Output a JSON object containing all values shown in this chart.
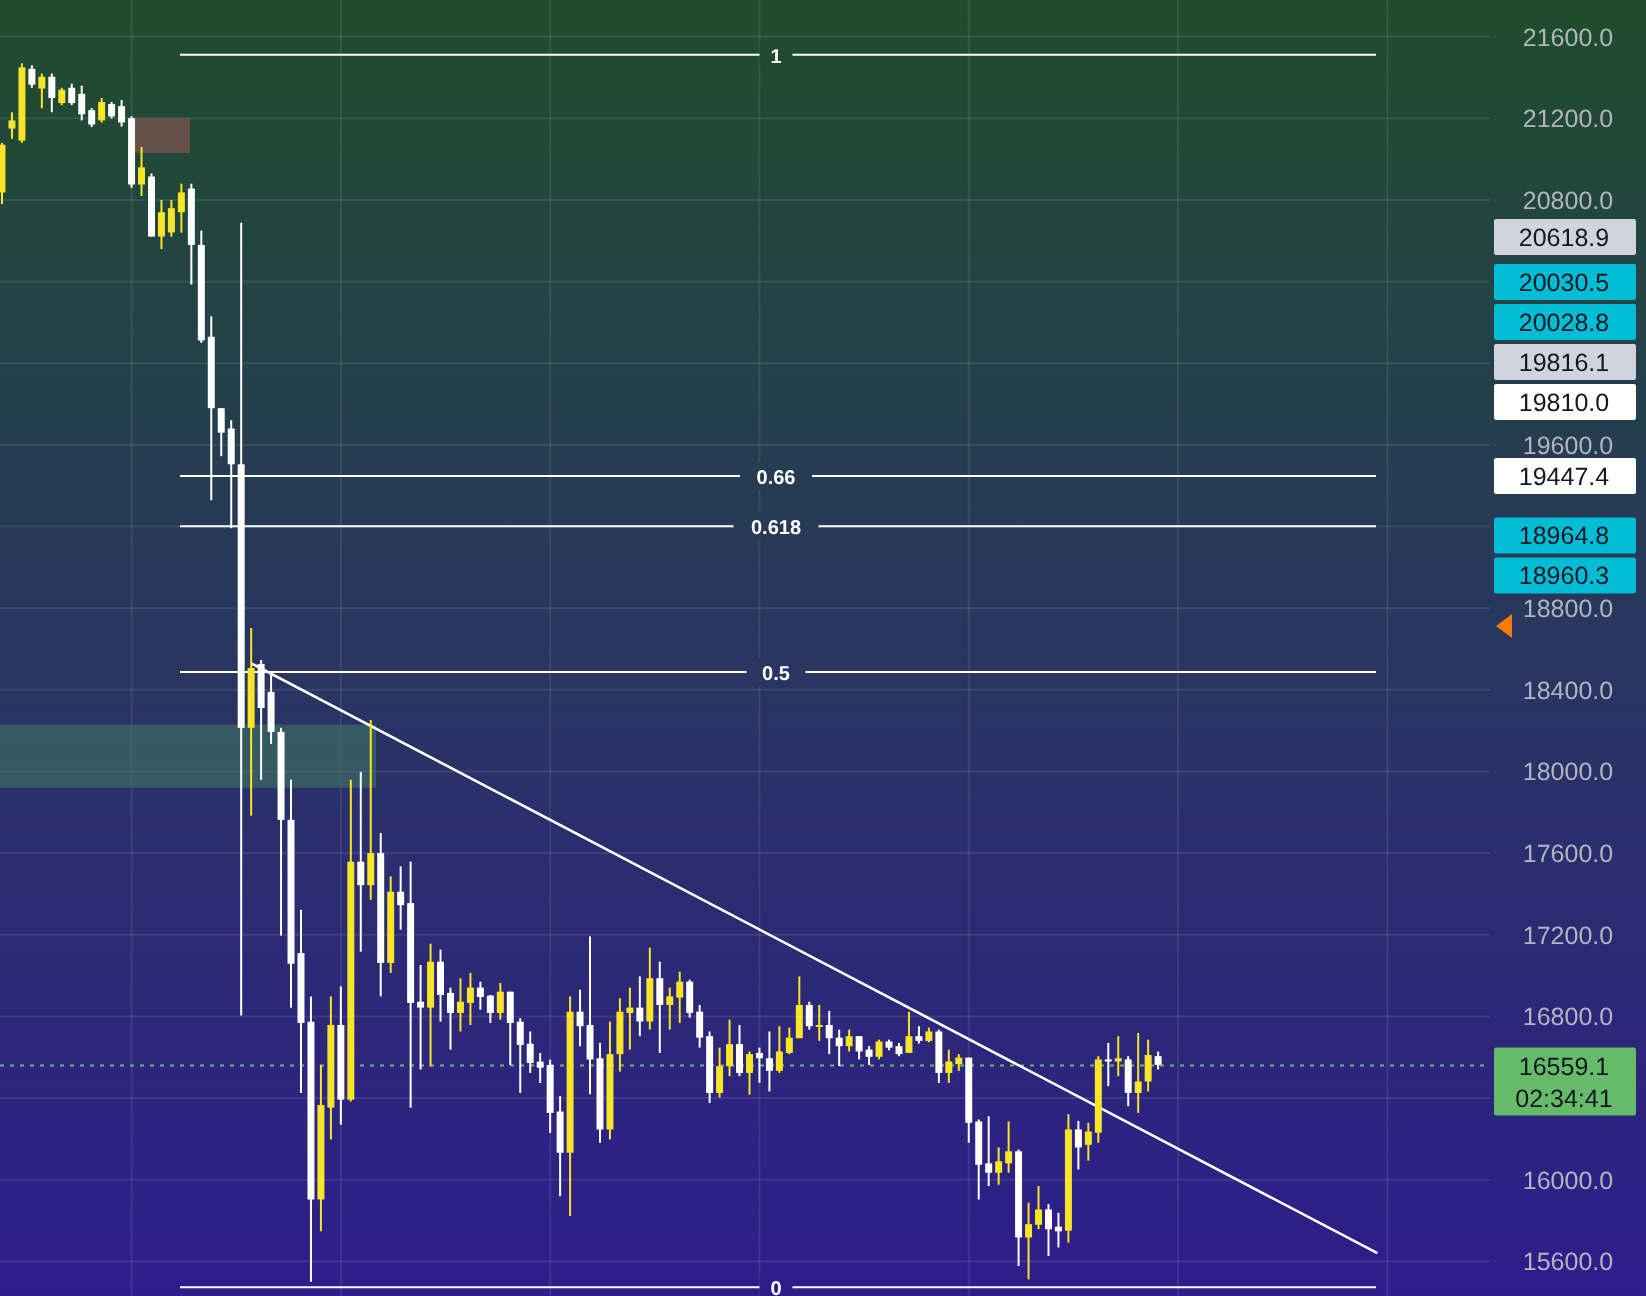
{
  "chart_data": {
    "type": "candlestick",
    "categories": [
      null,
      null,
      null,
      null,
      null,
      null,
      null,
      null,
      null,
      null,
      null,
      null,
      null,
      null,
      null,
      null,
      null,
      null,
      null,
      null,
      null,
      null,
      null,
      null,
      null,
      null,
      null,
      null,
      null,
      null,
      null,
      null,
      null,
      null,
      null,
      null,
      null,
      null,
      null,
      null,
      null,
      null,
      null,
      null,
      null,
      null,
      null,
      null,
      null,
      null,
      null,
      null,
      null,
      null,
      null,
      null,
      null,
      null,
      null,
      null,
      null,
      null,
      null,
      null,
      null,
      null,
      null,
      null,
      null,
      null,
      null,
      null,
      null,
      null,
      null,
      null,
      null,
      null,
      null,
      null,
      null,
      null,
      null,
      null,
      null,
      null,
      null,
      null,
      null,
      null,
      null,
      null,
      null,
      null,
      null,
      null,
      null,
      null,
      null,
      null,
      null,
      null,
      null,
      null,
      null,
      null,
      null,
      null,
      null,
      null,
      null,
      null,
      null,
      null,
      null,
      null,
      null,
      null,
      null,
      null,
      null,
      null,
      null,
      null,
      null,
      null,
      null,
      null,
      null,
      null,
      null,
      null,
      null,
      null,
      null,
      null,
      null,
      null,
      null,
      null,
      null,
      null,
      null,
      null,
      null,
      null,
      null,
      null,
      null,
      null
    ],
    "ohlc": [
      [
        20837,
        21080,
        20780,
        21071
      ],
      [
        21150,
        21230,
        21100,
        21190
      ],
      [
        21091,
        21470,
        21080,
        21450
      ],
      [
        21443,
        21460,
        21350,
        21365
      ],
      [
        21346,
        21420,
        21250,
        21404
      ],
      [
        21404,
        21420,
        21230,
        21300
      ],
      [
        21275,
        21350,
        21265,
        21340
      ],
      [
        21350,
        21370,
        21265,
        21275
      ],
      [
        21320,
        21360,
        21190,
        21220
      ],
      [
        21240,
        21250,
        21158,
        21170
      ],
      [
        21190,
        21300,
        21180,
        21280
      ],
      [
        21270,
        21280,
        21200,
        21210
      ],
      [
        21260,
        21290,
        21160,
        21180
      ],
      [
        21201,
        21210,
        20860,
        20876
      ],
      [
        20876,
        21060,
        20820,
        20960
      ],
      [
        20915,
        20930,
        20620,
        20621
      ],
      [
        20621,
        20800,
        20560,
        20740
      ],
      [
        20641,
        20800,
        20620,
        20760
      ],
      [
        20740,
        20880,
        20640,
        20837
      ],
      [
        20856,
        20880,
        20386,
        20580
      ],
      [
        20580,
        20650,
        20100,
        20112
      ],
      [
        20130,
        20230,
        19329,
        19780
      ],
      [
        19780,
        19780,
        19545,
        19660
      ],
      [
        19680,
        19721,
        19192,
        19505
      ],
      [
        19505,
        20688,
        16804,
        18214
      ],
      [
        18214,
        18703,
        17783,
        18507
      ],
      [
        18527,
        18546,
        17959,
        18311
      ],
      [
        18390,
        18488,
        18135,
        18194
      ],
      [
        18194,
        18214,
        17196,
        17763
      ],
      [
        17763,
        17960,
        16843,
        17058
      ],
      [
        17110,
        17322,
        16425,
        16768
      ],
      [
        16774,
        16898,
        15500,
        15903
      ],
      [
        15903,
        16562,
        15747,
        16366
      ],
      [
        16353,
        16898,
        16197,
        16758
      ],
      [
        16758,
        16947,
        16269,
        16392
      ],
      [
        16392,
        17959,
        16383,
        17558
      ],
      [
        17558,
        17998,
        17117,
        17443
      ],
      [
        17443,
        18252,
        17371,
        17600
      ],
      [
        17600,
        17698,
        16898,
        17062
      ],
      [
        17062,
        17486,
        17013,
        17411
      ],
      [
        17411,
        17535,
        17225,
        17345
      ],
      [
        17355,
        17558,
        16353,
        16866
      ],
      [
        16872,
        17052,
        16540,
        16843
      ],
      [
        16843,
        17156,
        16555,
        17068
      ],
      [
        17068,
        17127,
        16774,
        16905
      ],
      [
        16915,
        16941,
        16637,
        16817
      ],
      [
        16817,
        16987,
        16726,
        16872
      ],
      [
        16866,
        17013,
        16758,
        16941
      ],
      [
        16941,
        16970,
        16833,
        16895
      ],
      [
        16902,
        16905,
        16768,
        16817
      ],
      [
        16817,
        16964,
        16784,
        16921
      ],
      [
        16921,
        16921,
        16562,
        16768
      ],
      [
        16774,
        16791,
        16425,
        16660
      ],
      [
        16666,
        16726,
        16523,
        16572
      ],
      [
        16578,
        16621,
        16474,
        16549
      ],
      [
        16562,
        16588,
        16229,
        16327
      ],
      [
        16334,
        16409,
        15919,
        16132
      ],
      [
        16132,
        16898,
        15822,
        16823
      ],
      [
        16823,
        16931,
        16654,
        16752
      ],
      [
        16758,
        17192,
        16419,
        16589
      ],
      [
        16595,
        16670,
        16181,
        16246
      ],
      [
        16246,
        16774,
        16197,
        16615
      ],
      [
        16615,
        16889,
        16530,
        16823
      ],
      [
        16817,
        16941,
        16637,
        16843
      ],
      [
        16843,
        16996,
        16703,
        16775
      ],
      [
        16775,
        17137,
        16735,
        16987
      ],
      [
        16987,
        17068,
        16621,
        16856
      ],
      [
        16856,
        16941,
        16735,
        16898
      ],
      [
        16892,
        17019,
        16768,
        16970
      ],
      [
        16970,
        16980,
        16794,
        16817
      ],
      [
        16823,
        16856,
        16647,
        16696
      ],
      [
        16703,
        16726,
        16376,
        16425
      ],
      [
        16425,
        16647,
        16403,
        16556
      ],
      [
        16556,
        16784,
        16507,
        16664
      ],
      [
        16664,
        16758,
        16507,
        16523
      ],
      [
        16523,
        16628,
        16416,
        16615
      ],
      [
        16621,
        16647,
        16474,
        16595
      ],
      [
        16595,
        16726,
        16432,
        16533
      ],
      [
        16533,
        16752,
        16523,
        16628
      ],
      [
        16621,
        16745,
        16615,
        16696
      ],
      [
        16693,
        16996,
        16693,
        16856
      ],
      [
        16856,
        16872,
        16735,
        16752
      ],
      [
        16752,
        16856,
        16680,
        16758
      ],
      [
        16758,
        16827,
        16615,
        16693
      ],
      [
        16696,
        16735,
        16556,
        16654
      ],
      [
        16654,
        16735,
        16628,
        16703
      ],
      [
        16703,
        16703,
        16589,
        16628
      ],
      [
        16637,
        16654,
        16562,
        16602
      ],
      [
        16602,
        16686,
        16589,
        16677
      ],
      [
        16677,
        16686,
        16634,
        16647
      ],
      [
        16654,
        16670,
        16605,
        16615
      ],
      [
        16621,
        16823,
        16621,
        16703
      ],
      [
        16703,
        16752,
        16667,
        16680
      ],
      [
        16680,
        16745,
        16673,
        16726
      ],
      [
        16726,
        16735,
        16474,
        16523
      ],
      [
        16523,
        16637,
        16474,
        16579
      ],
      [
        16566,
        16615,
        16533,
        16598
      ],
      [
        16598,
        16598,
        16181,
        16279
      ],
      [
        16285,
        16295,
        15903,
        16073
      ],
      [
        16080,
        16311,
        15969,
        16034
      ],
      [
        16034,
        16158,
        15975,
        16090
      ],
      [
        16080,
        16285,
        16034,
        16139
      ],
      [
        16139,
        16148,
        15577,
        15717
      ],
      [
        15717,
        15887,
        15512,
        15782
      ],
      [
        15779,
        15969,
        15757,
        15854
      ],
      [
        15854,
        15880,
        15626,
        15757
      ],
      [
        15770,
        15838,
        15668,
        15747
      ],
      [
        15750,
        16321,
        15691,
        16246
      ],
      [
        16246,
        16288,
        16050,
        16158
      ],
      [
        16171,
        16279,
        16093,
        16236
      ],
      [
        16230,
        16605,
        16181,
        16589
      ],
      [
        16589,
        16670,
        16458,
        16579
      ],
      [
        16579,
        16703,
        16507,
        16595
      ],
      [
        16589,
        16605,
        16360,
        16425
      ],
      [
        16425,
        16719,
        16327,
        16481
      ],
      [
        16481,
        16686,
        16432,
        16611
      ],
      [
        16605,
        16628,
        16540,
        16562
      ],
      null,
      null,
      null,
      null,
      null,
      null,
      null,
      null,
      null,
      null,
      null,
      null,
      null,
      null,
      null,
      null,
      null,
      null,
      null,
      null,
      null,
      null,
      null,
      null,
      null,
      null,
      null,
      null,
      null,
      null,
      null,
      null,
      null
    ],
    "series": [
      {
        "type": "line",
        "values": [
          null,
          null,
          null,
          null,
          null,
          null,
          null,
          null,
          null,
          null,
          null,
          null,
          null,
          null,
          null,
          null,
          null,
          null,
          null,
          null,
          null,
          null,
          null,
          null,
          null,
          18530,
          null,
          null,
          null,
          null,
          null,
          null,
          null,
          null,
          null,
          null,
          null,
          null,
          null,
          null,
          null,
          null,
          null,
          null,
          null,
          null,
          null,
          null,
          null,
          null,
          null,
          null,
          null,
          null,
          null,
          null,
          null,
          null,
          null,
          null,
          null,
          null,
          null,
          null,
          null,
          null,
          null,
          null,
          null,
          null,
          null,
          null,
          null,
          null,
          null,
          null,
          null,
          null,
          null,
          null,
          null,
          null,
          null,
          null,
          null,
          null,
          null,
          null,
          null,
          null,
          null,
          null,
          null,
          null,
          null,
          null,
          null,
          null,
          null,
          null,
          null,
          null,
          null,
          null,
          null,
          null,
          null,
          null,
          null,
          null,
          null,
          null,
          null,
          null,
          null,
          null,
          null,
          null,
          null,
          null,
          null,
          null,
          null,
          null,
          null,
          null,
          null,
          null,
          null,
          null,
          null,
          null,
          null,
          null,
          null,
          null,
          null,
          null,
          15640,
          null,
          null,
          null,
          null,
          null,
          null,
          null,
          null,
          null,
          null,
          null
        ],
        "color": "#ffffff"
      }
    ],
    "ylim": [
      15430,
      21780
    ],
    "yticks": [
      {
        "value": 15600,
        "label": "15600.0"
      },
      {
        "value": 16000,
        "label": "16000.0"
      },
      {
        "value": 16400,
        "label": null
      },
      {
        "value": 16800,
        "label": "16800.0"
      },
      {
        "value": 17200,
        "label": "17200.0"
      },
      {
        "value": 17600,
        "label": "17600.0"
      },
      {
        "value": 18000,
        "label": "18000.0"
      },
      {
        "value": 18400,
        "label": "18400.0"
      },
      {
        "value": 18800,
        "label": "18800.0"
      },
      {
        "value": 19200,
        "label": null
      },
      {
        "value": 19600,
        "label": "19600.0"
      },
      {
        "value": 20000,
        "label": null
      },
      {
        "value": 20400,
        "label": null
      },
      {
        "value": 20800,
        "label": "20800.0"
      },
      {
        "value": 21200,
        "label": "21200.0"
      },
      {
        "value": 21600,
        "label": "21600.0"
      }
    ],
    "tick_labels": "y",
    "grid": true,
    "ref_lines": [
      {
        "axis": "y",
        "value": 21512,
        "color": "#ffffff"
      },
      {
        "axis": "y",
        "value": 19447.4,
        "color": "#ffffff"
      },
      {
        "axis": "y",
        "value": 19202,
        "color": "#ffffff"
      },
      {
        "axis": "y",
        "value": 18487,
        "color": "#ffffff"
      },
      {
        "axis": "y",
        "value": 15473,
        "color": "#ffffff"
      },
      {
        "axis": "y",
        "value": 16559.1,
        "label": "16559.1",
        "color": "#66bb6a",
        "line_style": "dotted"
      }
    ],
    "bands": [
      {
        "axis": "y",
        "from": 21030,
        "to": 21200,
        "color": "#a05555"
      },
      {
        "axis": "y",
        "from": 17920,
        "to": 18230,
        "color": "#3f7a5f"
      }
    ],
    "annotations": [
      "20618.9",
      "20030.5",
      "20028.8",
      "19816.1",
      "19810.0",
      "19447.4",
      "18964.8",
      "18960.3",
      "02:34:41",
      {
        "text": "1",
        "y": 21512
      },
      {
        "text": "0.66",
        "y": 19447.4
      },
      {
        "text": "0.618",
        "y": 19202
      },
      {
        "text": "0.5",
        "y": 18487
      },
      {
        "text": "0",
        "y": 15473
      }
    ]
  }
}
